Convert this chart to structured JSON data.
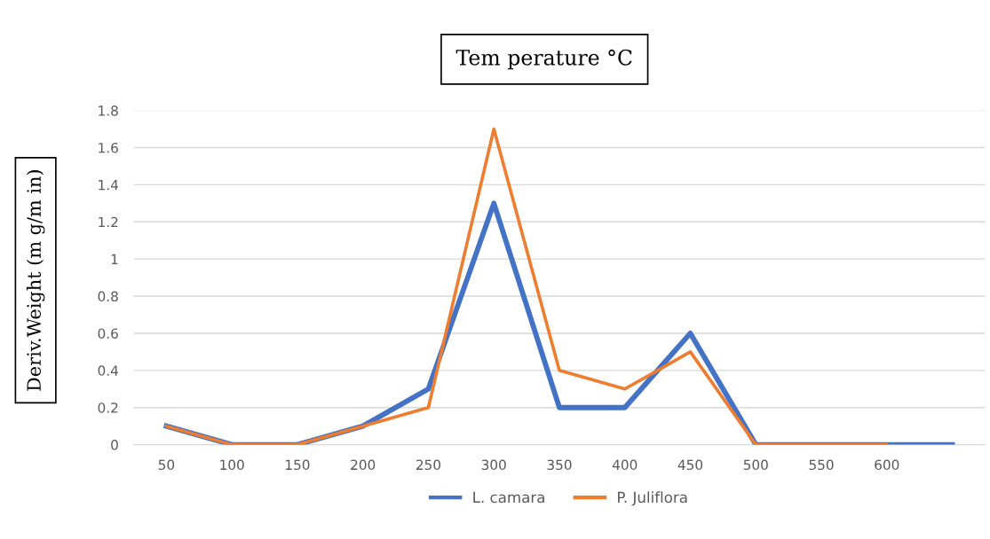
{
  "chart_data": {
    "type": "line",
    "title": "Tem perature °C",
    "ylabel": "Deriv.Weight (m g/m in)",
    "categories": [
      "50",
      "100",
      "150",
      "200",
      "250",
      "300",
      "350",
      "400",
      "450",
      "500",
      "550",
      "600",
      null
    ],
    "series": [
      {
        "name": "L. camara",
        "color": "#4472c4",
        "values": [
          0.1,
          0,
          0,
          0.1,
          0.3,
          1.3,
          0.2,
          0.2,
          0.6,
          0,
          0,
          0,
          0
        ]
      },
      {
        "name": "P. Juliflora",
        "color": "#ed7d31",
        "values": [
          0.1,
          0,
          0,
          0.1,
          0.2,
          1.7,
          0.4,
          0.3,
          0.5,
          0,
          0,
          0,
          null
        ]
      }
    ],
    "ylim": [
      0,
      1.8
    ],
    "yticks": [
      0,
      0.2,
      0.4,
      0.6,
      0.8,
      1,
      1.2,
      1.4,
      1.6,
      1.8
    ],
    "grid": "y",
    "legend": "bottom",
    "marker": "none",
    "line_style": "solid"
  }
}
